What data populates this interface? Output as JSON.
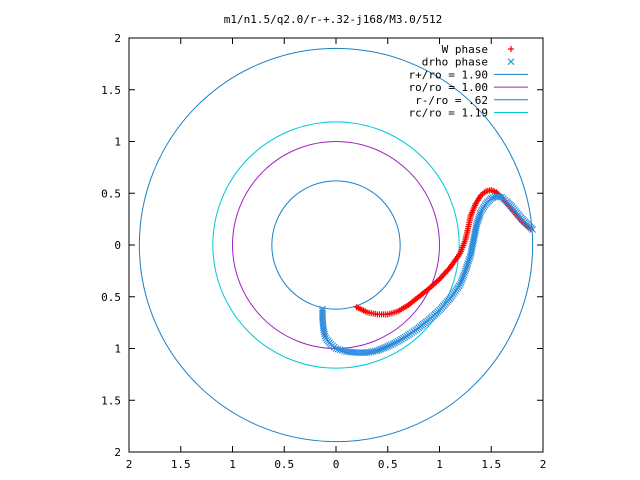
{
  "chart_data": {
    "type": "scatter",
    "title": "m1/n1.5/q2.0/r-+.32-j168/M3.0/512",
    "xlabel": "",
    "ylabel": "",
    "xlim": [
      -2,
      2
    ],
    "ylim": [
      -2,
      2
    ],
    "x_tick_labels": [
      "2",
      "1.5",
      "1",
      "0.5",
      "0",
      "0.5",
      "1",
      "1.5",
      "2"
    ],
    "y_tick_labels": [
      "2",
      "1.5",
      "1",
      "0.5",
      "0",
      "0.5",
      "1",
      "1.5",
      "2"
    ],
    "grid": false,
    "legend_position": "top-right",
    "series": [
      {
        "name": "W phase",
        "marker": "plus",
        "color": "#ff0000",
        "x": [
          0.2,
          0.3,
          0.4,
          0.5,
          0.6,
          0.7,
          0.8,
          0.9,
          1.0,
          1.1,
          1.2,
          1.25,
          1.28,
          1.3,
          1.35,
          1.4,
          1.45,
          1.5,
          1.55,
          1.6,
          1.65,
          1.7,
          1.75,
          1.8,
          1.85,
          1.88
        ],
        "y": [
          -0.6,
          -0.65,
          -0.67,
          -0.67,
          -0.64,
          -0.58,
          -0.5,
          -0.42,
          -0.33,
          -0.22,
          -0.08,
          0.05,
          0.18,
          0.28,
          0.4,
          0.48,
          0.52,
          0.53,
          0.51,
          0.46,
          0.4,
          0.34,
          0.28,
          0.22,
          0.18,
          0.16
        ]
      },
      {
        "name": "drho phase",
        "marker": "cross",
        "color": "#2a8bdc",
        "x": [
          -0.13,
          -0.13,
          -0.12,
          -0.1,
          -0.05,
          0.0,
          0.1,
          0.2,
          0.3,
          0.4,
          0.5,
          0.6,
          0.7,
          0.8,
          0.9,
          1.0,
          1.1,
          1.2,
          1.25,
          1.3,
          1.33,
          1.36,
          1.4,
          1.45,
          1.5,
          1.55,
          1.6,
          1.65,
          1.7,
          1.75,
          1.8,
          1.85,
          1.9
        ],
        "y": [
          -0.62,
          -0.72,
          -0.82,
          -0.9,
          -0.96,
          -1.0,
          -1.03,
          -1.04,
          -1.04,
          -1.02,
          -0.98,
          -0.93,
          -0.87,
          -0.8,
          -0.72,
          -0.63,
          -0.52,
          -0.38,
          -0.25,
          -0.1,
          0.05,
          0.2,
          0.32,
          0.4,
          0.45,
          0.47,
          0.46,
          0.42,
          0.37,
          0.31,
          0.25,
          0.2,
          0.15
        ]
      },
      {
        "name": "r+/ro = 1.90",
        "type": "circle",
        "radius": 1.9,
        "color": "#1a7fc4"
      },
      {
        "name": "ro/ro = 1.00",
        "type": "circle",
        "radius": 1.0,
        "color": "#a020c0"
      },
      {
        "name": "r-/ro = .62",
        "type": "circle",
        "radius": 0.62,
        "color": "#1a7fc4"
      },
      {
        "name": "rc/ro = 1.19",
        "type": "circle",
        "radius": 1.19,
        "color": "#00c8d8"
      }
    ]
  }
}
